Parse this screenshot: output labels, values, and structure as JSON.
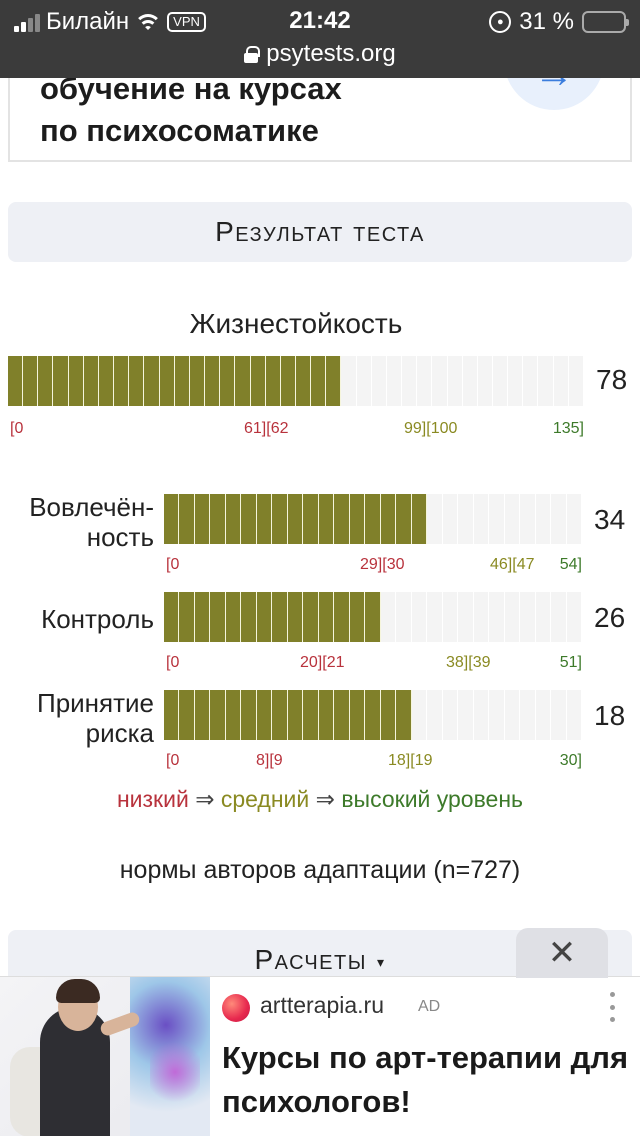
{
  "status_bar": {
    "carrier": "Билайн",
    "vpn": "VPN",
    "time": "21:42",
    "battery": "31 %",
    "url": "psytests.org"
  },
  "promo": {
    "line1": "обучение на курсах",
    "line2": "по психосоматике",
    "icon": "arrow-right-icon"
  },
  "result_header": "Результат теста",
  "main_scale": {
    "title": "Жизнестойкость",
    "value": "78",
    "level_fraction": 0.578,
    "ticks": [
      "[0",
      "61][62",
      "99][100",
      "135]"
    ]
  },
  "subscales": [
    {
      "label_line1": "Вовлечён-",
      "label_line2": "ность",
      "value": "34",
      "level_fraction": 0.63,
      "ticks": [
        "[0",
        "29][30",
        "46][47",
        "54]"
      ]
    },
    {
      "label_line1": "Контроль",
      "label_line2": "",
      "value": "26",
      "level_fraction": 0.51,
      "ticks": [
        "[0",
        "20][21",
        "38][39",
        "51]"
      ]
    },
    {
      "label_line1": "Принятие",
      "label_line2": "риска",
      "value": "18",
      "level_fraction": 0.6,
      "ticks": [
        "[0",
        "8][9",
        "18][19",
        "30]"
      ]
    }
  ],
  "legend": {
    "low": "низкий",
    "arrow": "⇒",
    "mid": "средний",
    "high": "высокий уровень"
  },
  "norms": "нормы авторов адаптации (n=727)",
  "calc": {
    "label": "Расчеты",
    "toggle_icon": "▾"
  },
  "close_icon": "✕",
  "ad": {
    "domain": "artterapia.ru",
    "badge": "AD",
    "headline": "Курсы по арт-терапии для психологов!"
  },
  "colors": {
    "bar_fill": "#80802a",
    "low": "#b8323c",
    "mid": "#8a8a22",
    "high": "#3d7a2a"
  }
}
